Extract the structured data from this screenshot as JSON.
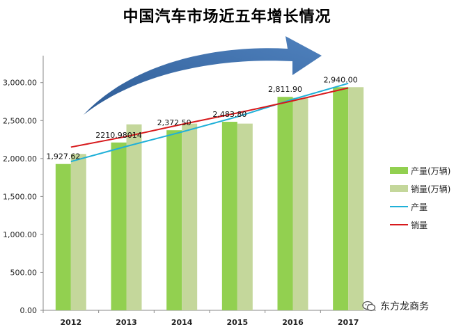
{
  "chart_data": {
    "type": "bar",
    "title": "中国汽车市场近五年增长情况",
    "categories": [
      "2012",
      "2013",
      "2014",
      "2015",
      "2016",
      "2017"
    ],
    "series": [
      {
        "name": "产量(万辆)",
        "kind": "bar",
        "color": "#92d050",
        "values": [
          1927.62,
          2210.98014,
          2372.5,
          2483.8,
          2811.9,
          2940.0
        ]
      },
      {
        "name": "销量(万辆)",
        "kind": "bar",
        "color": "#c4d79b",
        "values": [
          2060,
          2450,
          2460,
          2460,
          2800,
          2940
        ]
      },
      {
        "name": "产量",
        "kind": "line",
        "color": "#1fb0d8",
        "values": [
          1960,
          2160,
          2350,
          2550,
          2780,
          2990
        ]
      },
      {
        "name": "销量",
        "kind": "line",
        "color": "#d7191c",
        "values": [
          2150,
          2290,
          2450,
          2600,
          2760,
          2930
        ]
      }
    ],
    "data_labels": [
      "1,927.62",
      "2210.98014",
      "2,372.50",
      "2,483.80",
      "2,811.90",
      "2,940.00"
    ],
    "y_ticks": [
      "0.00",
      "500.00",
      "1,000.00",
      "1,500.00",
      "2,000.00",
      "2,500.00",
      "3,000.00"
    ],
    "ylim": [
      0,
      3300
    ],
    "legend_position": "right",
    "grid": false,
    "arrow_color": "#4f81bd"
  },
  "watermark": {
    "text": "东方龙商务",
    "icon": "wechat-icon"
  }
}
